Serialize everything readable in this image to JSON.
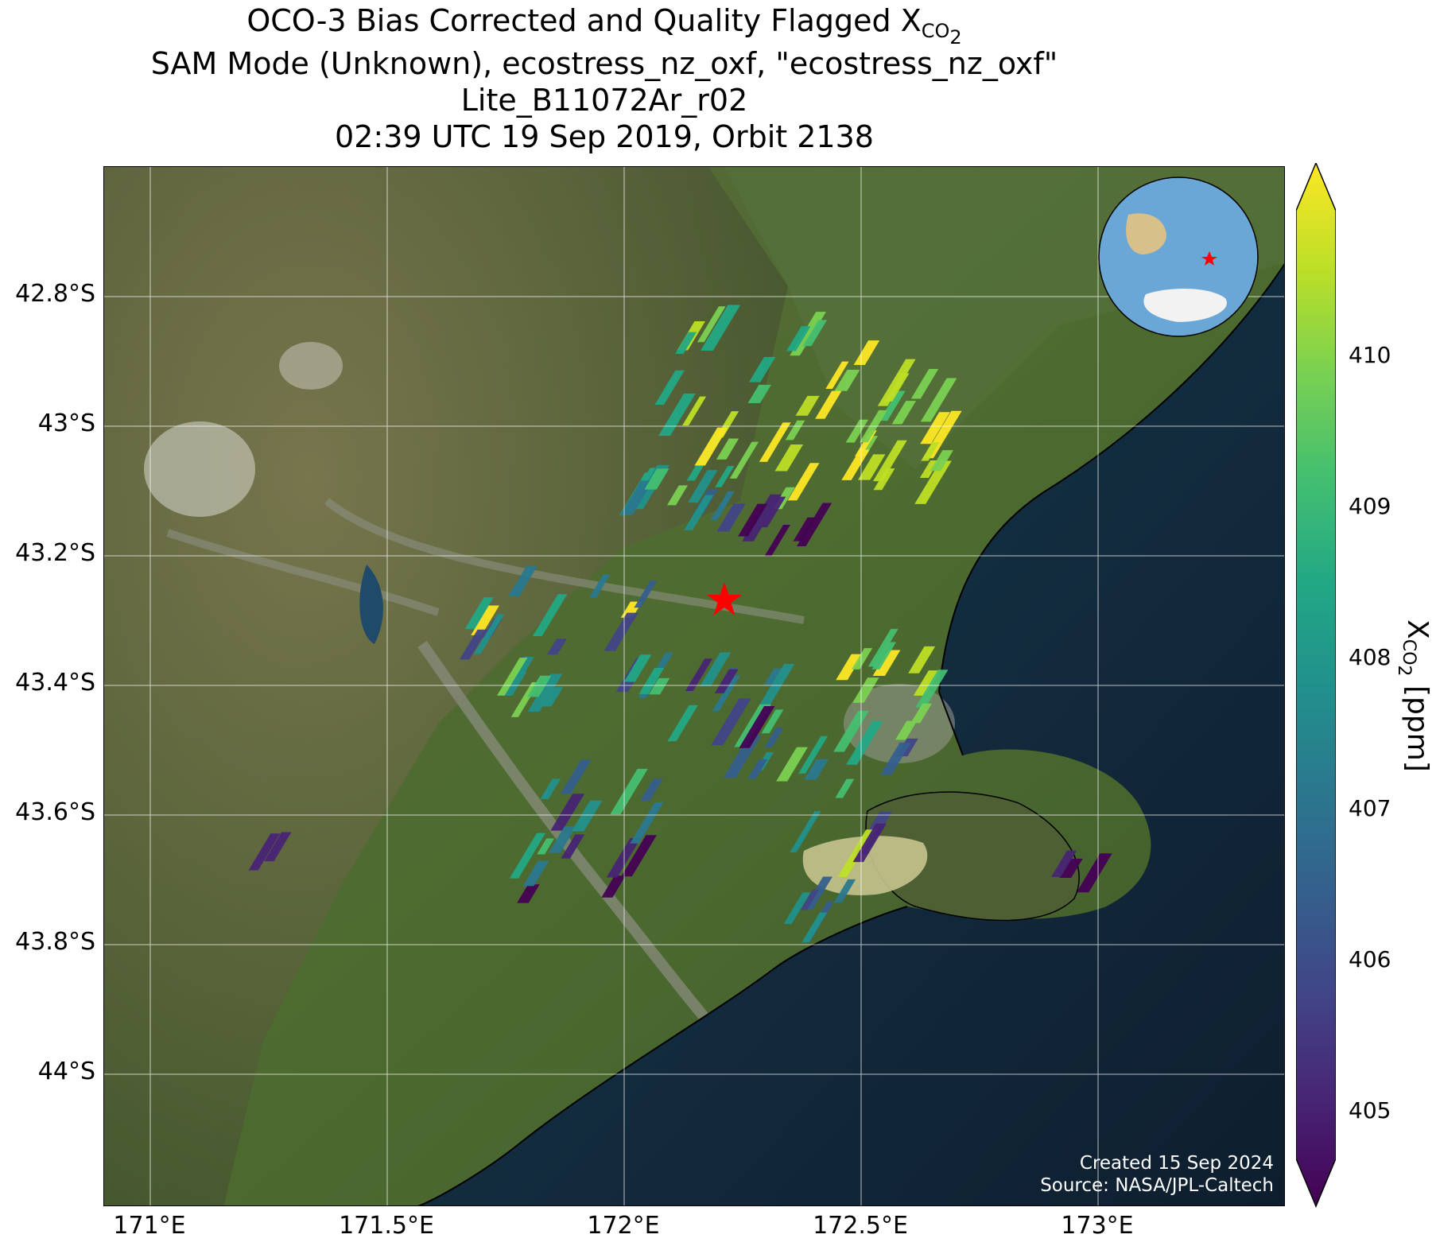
{
  "title": {
    "line1_prefix": "OCO-3 Bias Corrected and Quality Flagged X",
    "line1_sub": "CO",
    "line1_sub2": "2",
    "line2": "SAM Mode (Unknown), ecostress_nz_oxf, \"ecostress_nz_oxf\"",
    "line3": "Lite_B11072Ar_r02",
    "line4": "02:39 UTC 19 Sep 2019, Orbit 2138"
  },
  "axes": {
    "lat_labels": [
      "42.8°S",
      "43°S",
      "43.2°S",
      "43.4°S",
      "43.6°S",
      "43.8°S",
      "44°S"
    ],
    "lon_labels": [
      "171°E",
      "171.5°E",
      "172°E",
      "172.5°E",
      "173°E"
    ]
  },
  "colorbar": {
    "label_prefix": "X",
    "label_sub": "CO",
    "label_sub2": "2",
    "label_suffix": " [ppm]",
    "ticks": [
      "405",
      "406",
      "407",
      "408",
      "409",
      "410"
    ],
    "range": [
      404.5,
      411.0
    ],
    "extend": "both",
    "colormap": "viridis"
  },
  "credits": {
    "created": "Created 15 Sep 2024",
    "source": "Source: NASA/JPL-Caltech"
  },
  "target_marker": {
    "lon": 172.21,
    "lat": -43.26,
    "color": "#ff0000"
  },
  "inset_globe": {
    "ocean_color": "#6aa6d6",
    "marker_color": "#ff0000"
  },
  "colors": {
    "land": "#4f6b34",
    "ocean": "#142638",
    "lake": "#c7c48e",
    "gridline": "#ffffff"
  }
}
